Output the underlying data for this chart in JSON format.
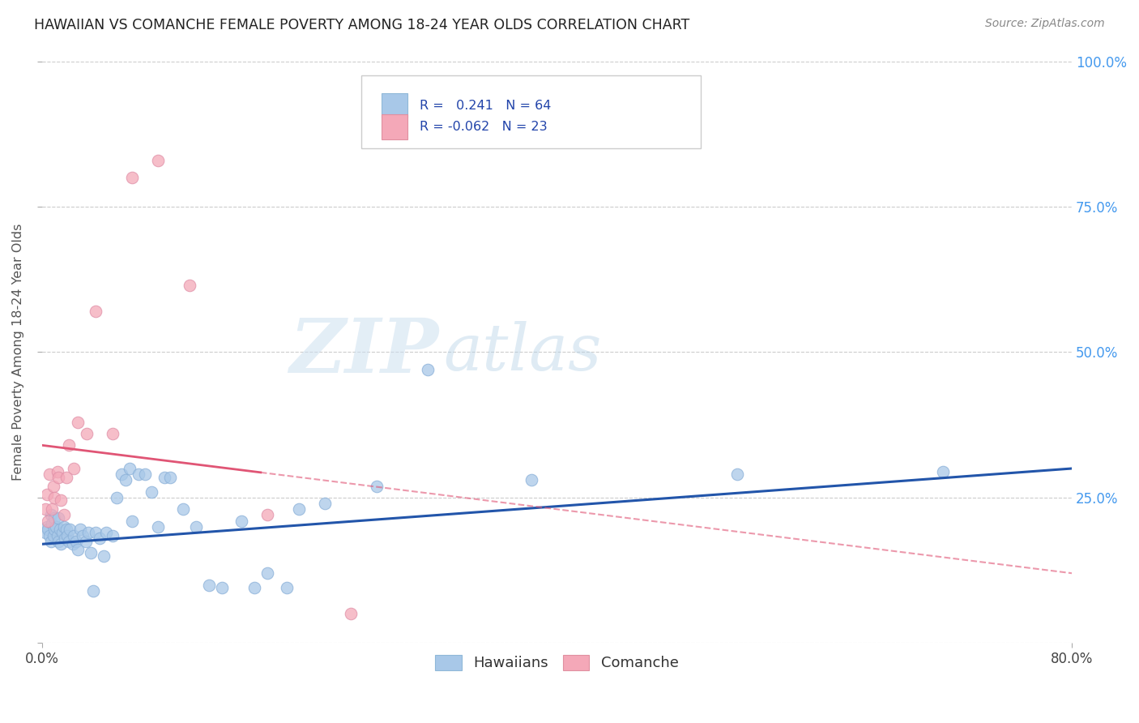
{
  "title": "HAWAIIAN VS COMANCHE FEMALE POVERTY AMONG 18-24 YEAR OLDS CORRELATION CHART",
  "source": "Source: ZipAtlas.com",
  "ylabel": "Female Poverty Among 18-24 Year Olds",
  "xlim": [
    0.0,
    0.8
  ],
  "ylim": [
    0.0,
    1.0
  ],
  "legend_R_hawaiian": "0.241",
  "legend_N_hawaiian": "64",
  "legend_R_comanche": "-0.062",
  "legend_N_comanche": "23",
  "hawaiian_color": "#a8c8e8",
  "comanche_color": "#f4a8b8",
  "hawaiian_line_color": "#2255aa",
  "comanche_line_color": "#e05575",
  "watermark_zip": "ZIP",
  "watermark_atlas": "atlas",
  "hawaiian_x": [
    0.003,
    0.004,
    0.005,
    0.006,
    0.007,
    0.007,
    0.008,
    0.009,
    0.01,
    0.01,
    0.011,
    0.012,
    0.013,
    0.013,
    0.014,
    0.015,
    0.016,
    0.017,
    0.018,
    0.019,
    0.02,
    0.021,
    0.022,
    0.024,
    0.025,
    0.027,
    0.028,
    0.03,
    0.032,
    0.034,
    0.036,
    0.038,
    0.04,
    0.042,
    0.045,
    0.048,
    0.05,
    0.055,
    0.058,
    0.062,
    0.065,
    0.068,
    0.07,
    0.075,
    0.08,
    0.085,
    0.09,
    0.095,
    0.1,
    0.11,
    0.12,
    0.13,
    0.14,
    0.155,
    0.165,
    0.175,
    0.19,
    0.2,
    0.22,
    0.26,
    0.3,
    0.38,
    0.54,
    0.7
  ],
  "hawaiian_y": [
    0.19,
    0.2,
    0.195,
    0.185,
    0.175,
    0.22,
    0.205,
    0.185,
    0.195,
    0.215,
    0.2,
    0.185,
    0.175,
    0.215,
    0.195,
    0.17,
    0.19,
    0.2,
    0.18,
    0.195,
    0.185,
    0.175,
    0.195,
    0.17,
    0.185,
    0.175,
    0.16,
    0.195,
    0.185,
    0.175,
    0.19,
    0.155,
    0.09,
    0.19,
    0.18,
    0.15,
    0.19,
    0.185,
    0.25,
    0.29,
    0.28,
    0.3,
    0.21,
    0.29,
    0.29,
    0.26,
    0.2,
    0.285,
    0.285,
    0.23,
    0.2,
    0.1,
    0.095,
    0.21,
    0.095,
    0.12,
    0.095,
    0.23,
    0.24,
    0.27,
    0.47,
    0.28,
    0.29,
    0.295
  ],
  "comanche_x": [
    0.003,
    0.004,
    0.005,
    0.006,
    0.008,
    0.009,
    0.01,
    0.012,
    0.013,
    0.015,
    0.017,
    0.019,
    0.021,
    0.025,
    0.028,
    0.035,
    0.042,
    0.055,
    0.07,
    0.09,
    0.115,
    0.175,
    0.24
  ],
  "comanche_y": [
    0.23,
    0.255,
    0.21,
    0.29,
    0.23,
    0.27,
    0.25,
    0.295,
    0.285,
    0.245,
    0.22,
    0.285,
    0.34,
    0.3,
    0.38,
    0.36,
    0.57,
    0.36,
    0.8,
    0.83,
    0.615,
    0.22,
    0.05
  ]
}
